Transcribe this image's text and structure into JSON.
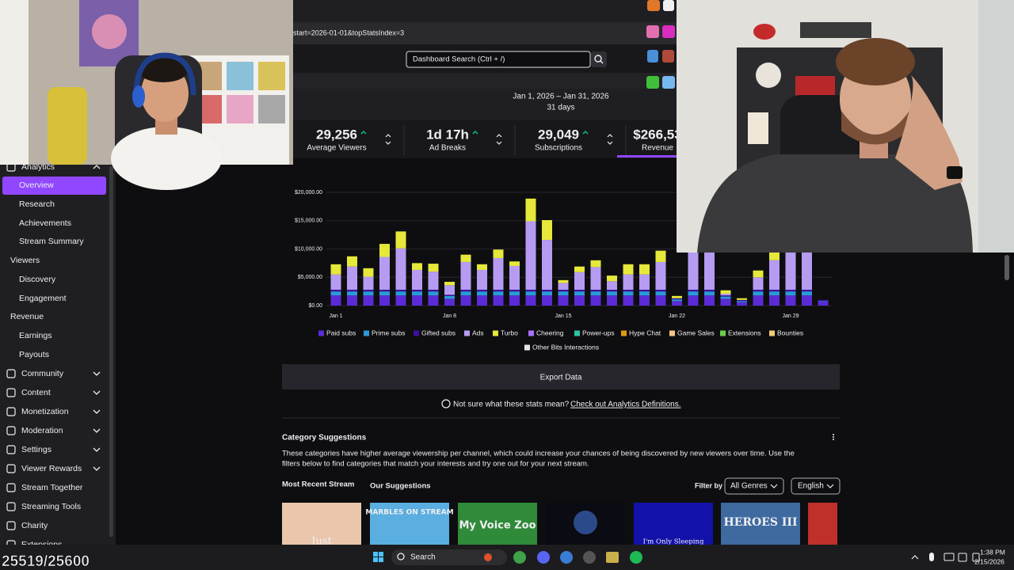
{
  "browser": {
    "url_fragment": "start=2026-01-01&topStatsIndex=3",
    "search_placeholder": "Dashboard Search (Ctrl + /)"
  },
  "sidebar": {
    "items": [
      "Analytics",
      "Overview",
      "Research",
      "Achievements",
      "Stream Summary",
      "Viewers",
      "Discovery",
      "Engagement",
      "Revenue",
      "Earnings",
      "Payouts",
      "Community",
      "Content",
      "Monetization",
      "Moderation",
      "Settings",
      "Viewer Rewards",
      "Stream Together",
      "Streaming Tools",
      "Charity",
      "Extensions"
    ]
  },
  "date_range": {
    "range": "Jan 1, 2026 – Jan 31, 2026",
    "days": "31 days"
  },
  "stats": [
    {
      "value": "29,256",
      "label": "Average Viewers"
    },
    {
      "value": "1d 17h",
      "label": "Ad Breaks"
    },
    {
      "value": "29,049",
      "label": "Subscriptions"
    },
    {
      "value": "$266,53",
      "label": "Revenue"
    }
  ],
  "chart": {
    "type": "bar",
    "stacked": true,
    "categories": [
      "Jan 1",
      null,
      null,
      null,
      null,
      null,
      null,
      "Jan 8",
      null,
      null,
      null,
      null,
      null,
      null,
      "Jan 15",
      null,
      null,
      null,
      null,
      null,
      null,
      "Jan 22",
      null,
      null,
      null,
      null,
      null,
      null,
      "Jan 29",
      null,
      null
    ],
    "ylim": [
      0,
      20000
    ],
    "yticks": [
      {
        "value": 0,
        "label": "$0.00"
      },
      {
        "value": 5000,
        "label": "$5,000.00"
      },
      {
        "value": 10000,
        "label": "$10,000.00"
      },
      {
        "value": 15000,
        "label": "$15,000.00"
      },
      {
        "value": 20000,
        "label": "$20,000.00"
      }
    ],
    "grid": true,
    "series": [
      {
        "name": "Paid subs",
        "color": "#5b2bd6",
        "values": [
          1800,
          1800,
          1800,
          1800,
          1800,
          1800,
          1800,
          1200,
          1800,
          1800,
          1800,
          1800,
          1800,
          1800,
          1800,
          1800,
          1800,
          1800,
          1800,
          1800,
          1800,
          800,
          1800,
          1800,
          1200,
          600,
          1800,
          1800,
          1800,
          1800,
          700
        ]
      },
      {
        "name": "Prime subs",
        "color": "#2b9ad6",
        "values": [
          700,
          700,
          700,
          700,
          700,
          700,
          700,
          500,
          700,
          700,
          700,
          700,
          700,
          700,
          700,
          700,
          700,
          700,
          700,
          700,
          700,
          300,
          700,
          700,
          400,
          200,
          700,
          700,
          700,
          700,
          100
        ]
      },
      {
        "name": "Gifted subs",
        "color": "#3d0f9e",
        "values": [
          300,
          300,
          300,
          300,
          300,
          300,
          300,
          200,
          300,
          300,
          300,
          300,
          300,
          300,
          300,
          300,
          300,
          300,
          300,
          300,
          300,
          200,
          300,
          300,
          200,
          200,
          300,
          300,
          300,
          300,
          200
        ]
      },
      {
        "name": "Ads",
        "color": "#b59cf2",
        "values": [
          2700,
          4100,
          2300,
          5800,
          7300,
          3500,
          3200,
          1700,
          4900,
          3500,
          5600,
          4200,
          12100,
          8800,
          1200,
          3100,
          4000,
          1500,
          2700,
          2700,
          4900,
          0,
          6600,
          6600,
          300,
          0,
          2200,
          5200,
          6600,
          6600,
          0
        ]
      },
      {
        "name": "Turbo",
        "color": "#e6e83a",
        "values": [
          1800,
          1800,
          1500,
          2300,
          3000,
          1200,
          1400,
          600,
          1300,
          1000,
          1500,
          800,
          4000,
          3500,
          500,
          1000,
          1200,
          1000,
          1800,
          1800,
          2000,
          400,
          0,
          0,
          600,
          300,
          1200,
          1400,
          0,
          0,
          0
        ]
      },
      {
        "name": "Cheering",
        "color": "#a970ff"
      },
      {
        "name": "Power-ups",
        "color": "#2fc2a3"
      },
      {
        "name": "Hype Chat",
        "color": "#e09a12"
      },
      {
        "name": "Game Sales",
        "color": "#f5c77e"
      },
      {
        "name": "Extensions",
        "color": "#6ad04a"
      },
      {
        "name": "Bounties",
        "color": "#f2cb75"
      },
      {
        "name": "Other Bits Interactions",
        "color": "#e6e6e6"
      }
    ]
  },
  "export_label": "Export Data",
  "help": {
    "question": "Not sure what these stats mean?",
    "link": "Check out Analytics Definitions."
  },
  "suggestions": {
    "title": "Category Suggestions",
    "description": [
      "These categories have higher average viewership per channel, which could increase your chances of being discovered by new viewers over time. Use the",
      "filters below to find categories that match your interests and try one out for your next stream."
    ],
    "tabs": [
      "Most Recent Stream",
      "Our Suggestions"
    ],
    "filter_label": "Filter by",
    "filters": [
      "All Genres",
      "English"
    ],
    "thumbnails": [
      "Just",
      "MARBLES ON STREAM",
      "My Voice Zoo",
      "I'm Only Sleeping",
      "HEROES III"
    ]
  },
  "taskbar": {
    "search": "Search",
    "time": "1:38 PM",
    "date": "2/15/2026"
  },
  "overlay": {
    "counter": "25519/25600"
  }
}
